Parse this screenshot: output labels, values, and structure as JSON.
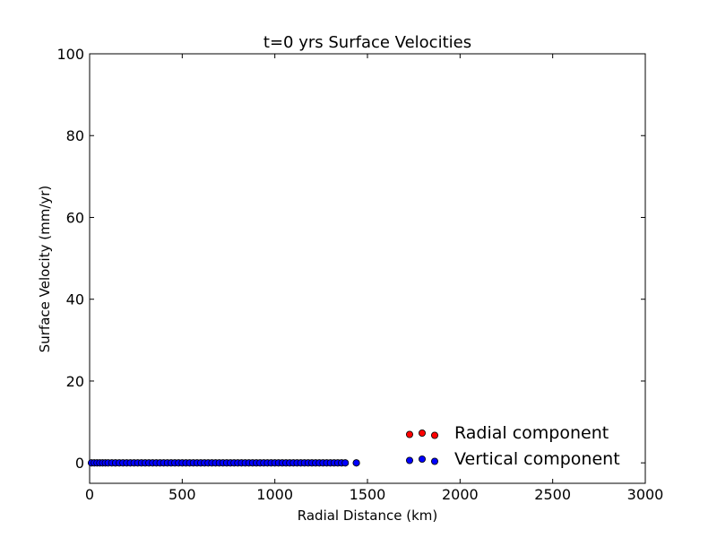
{
  "chart_data": {
    "type": "scatter",
    "title": "t=0 yrs Surface Velocities",
    "xlabel": "Radial Distance (km)",
    "ylabel": "Surface Velocity (mm/yr)",
    "xlim": [
      0,
      3000
    ],
    "ylim": [
      -5,
      100
    ],
    "xticks": [
      0,
      500,
      1000,
      1500,
      2000,
      2500,
      3000
    ],
    "yticks": [
      0,
      20,
      40,
      60,
      80,
      100
    ],
    "grid": false,
    "legend_position": "lower-right",
    "series": [
      {
        "name": "Radial component",
        "color": "#ff0000",
        "x": [
          10,
          25,
          40,
          55,
          70,
          85,
          100,
          120,
          140,
          160,
          180,
          200,
          220,
          240,
          260,
          280,
          300,
          320,
          340,
          360,
          380,
          400,
          420,
          440,
          460,
          480,
          500,
          520,
          540,
          560,
          580,
          600,
          620,
          640,
          660,
          680,
          700,
          720,
          740,
          760,
          780,
          800,
          820,
          840,
          860,
          880,
          900,
          920,
          940,
          960,
          980,
          1000,
          1020,
          1040,
          1060,
          1080,
          1100,
          1120,
          1140,
          1160,
          1180,
          1200,
          1220,
          1240,
          1260,
          1280,
          1300,
          1320,
          1340,
          1360,
          1380,
          1440
        ],
        "y": [
          0,
          0,
          0,
          0,
          0,
          0,
          0,
          0,
          0,
          0,
          0,
          0,
          0,
          0,
          0,
          0,
          0,
          0,
          0,
          0,
          0,
          0,
          0,
          0,
          0,
          0,
          0,
          0,
          0,
          0,
          0,
          0,
          0,
          0,
          0,
          0,
          0,
          0,
          0,
          0,
          0,
          0,
          0,
          0,
          0,
          0,
          0,
          0,
          0,
          0,
          0,
          0,
          0,
          0,
          0,
          0,
          0,
          0,
          0,
          0,
          0,
          0,
          0,
          0,
          0,
          0,
          0,
          0,
          0,
          0,
          0,
          0
        ]
      },
      {
        "name": "Vertical component",
        "color": "#0000ff",
        "x": [
          10,
          25,
          40,
          55,
          70,
          85,
          100,
          120,
          140,
          160,
          180,
          200,
          220,
          240,
          260,
          280,
          300,
          320,
          340,
          360,
          380,
          400,
          420,
          440,
          460,
          480,
          500,
          520,
          540,
          560,
          580,
          600,
          620,
          640,
          660,
          680,
          700,
          720,
          740,
          760,
          780,
          800,
          820,
          840,
          860,
          880,
          900,
          920,
          940,
          960,
          980,
          1000,
          1020,
          1040,
          1060,
          1080,
          1100,
          1120,
          1140,
          1160,
          1180,
          1200,
          1220,
          1240,
          1260,
          1280,
          1300,
          1320,
          1340,
          1360,
          1380,
          1440
        ],
        "y": [
          0,
          0,
          0,
          0,
          0,
          0,
          0,
          0,
          0,
          0,
          0,
          0,
          0,
          0,
          0,
          0,
          0,
          0,
          0,
          0,
          0,
          0,
          0,
          0,
          0,
          0,
          0,
          0,
          0,
          0,
          0,
          0,
          0,
          0,
          0,
          0,
          0,
          0,
          0,
          0,
          0,
          0,
          0,
          0,
          0,
          0,
          0,
          0,
          0,
          0,
          0,
          0,
          0,
          0,
          0,
          0,
          0,
          0,
          0,
          0,
          0,
          0,
          0,
          0,
          0,
          0,
          0,
          0,
          0,
          0,
          0,
          0
        ]
      }
    ]
  }
}
